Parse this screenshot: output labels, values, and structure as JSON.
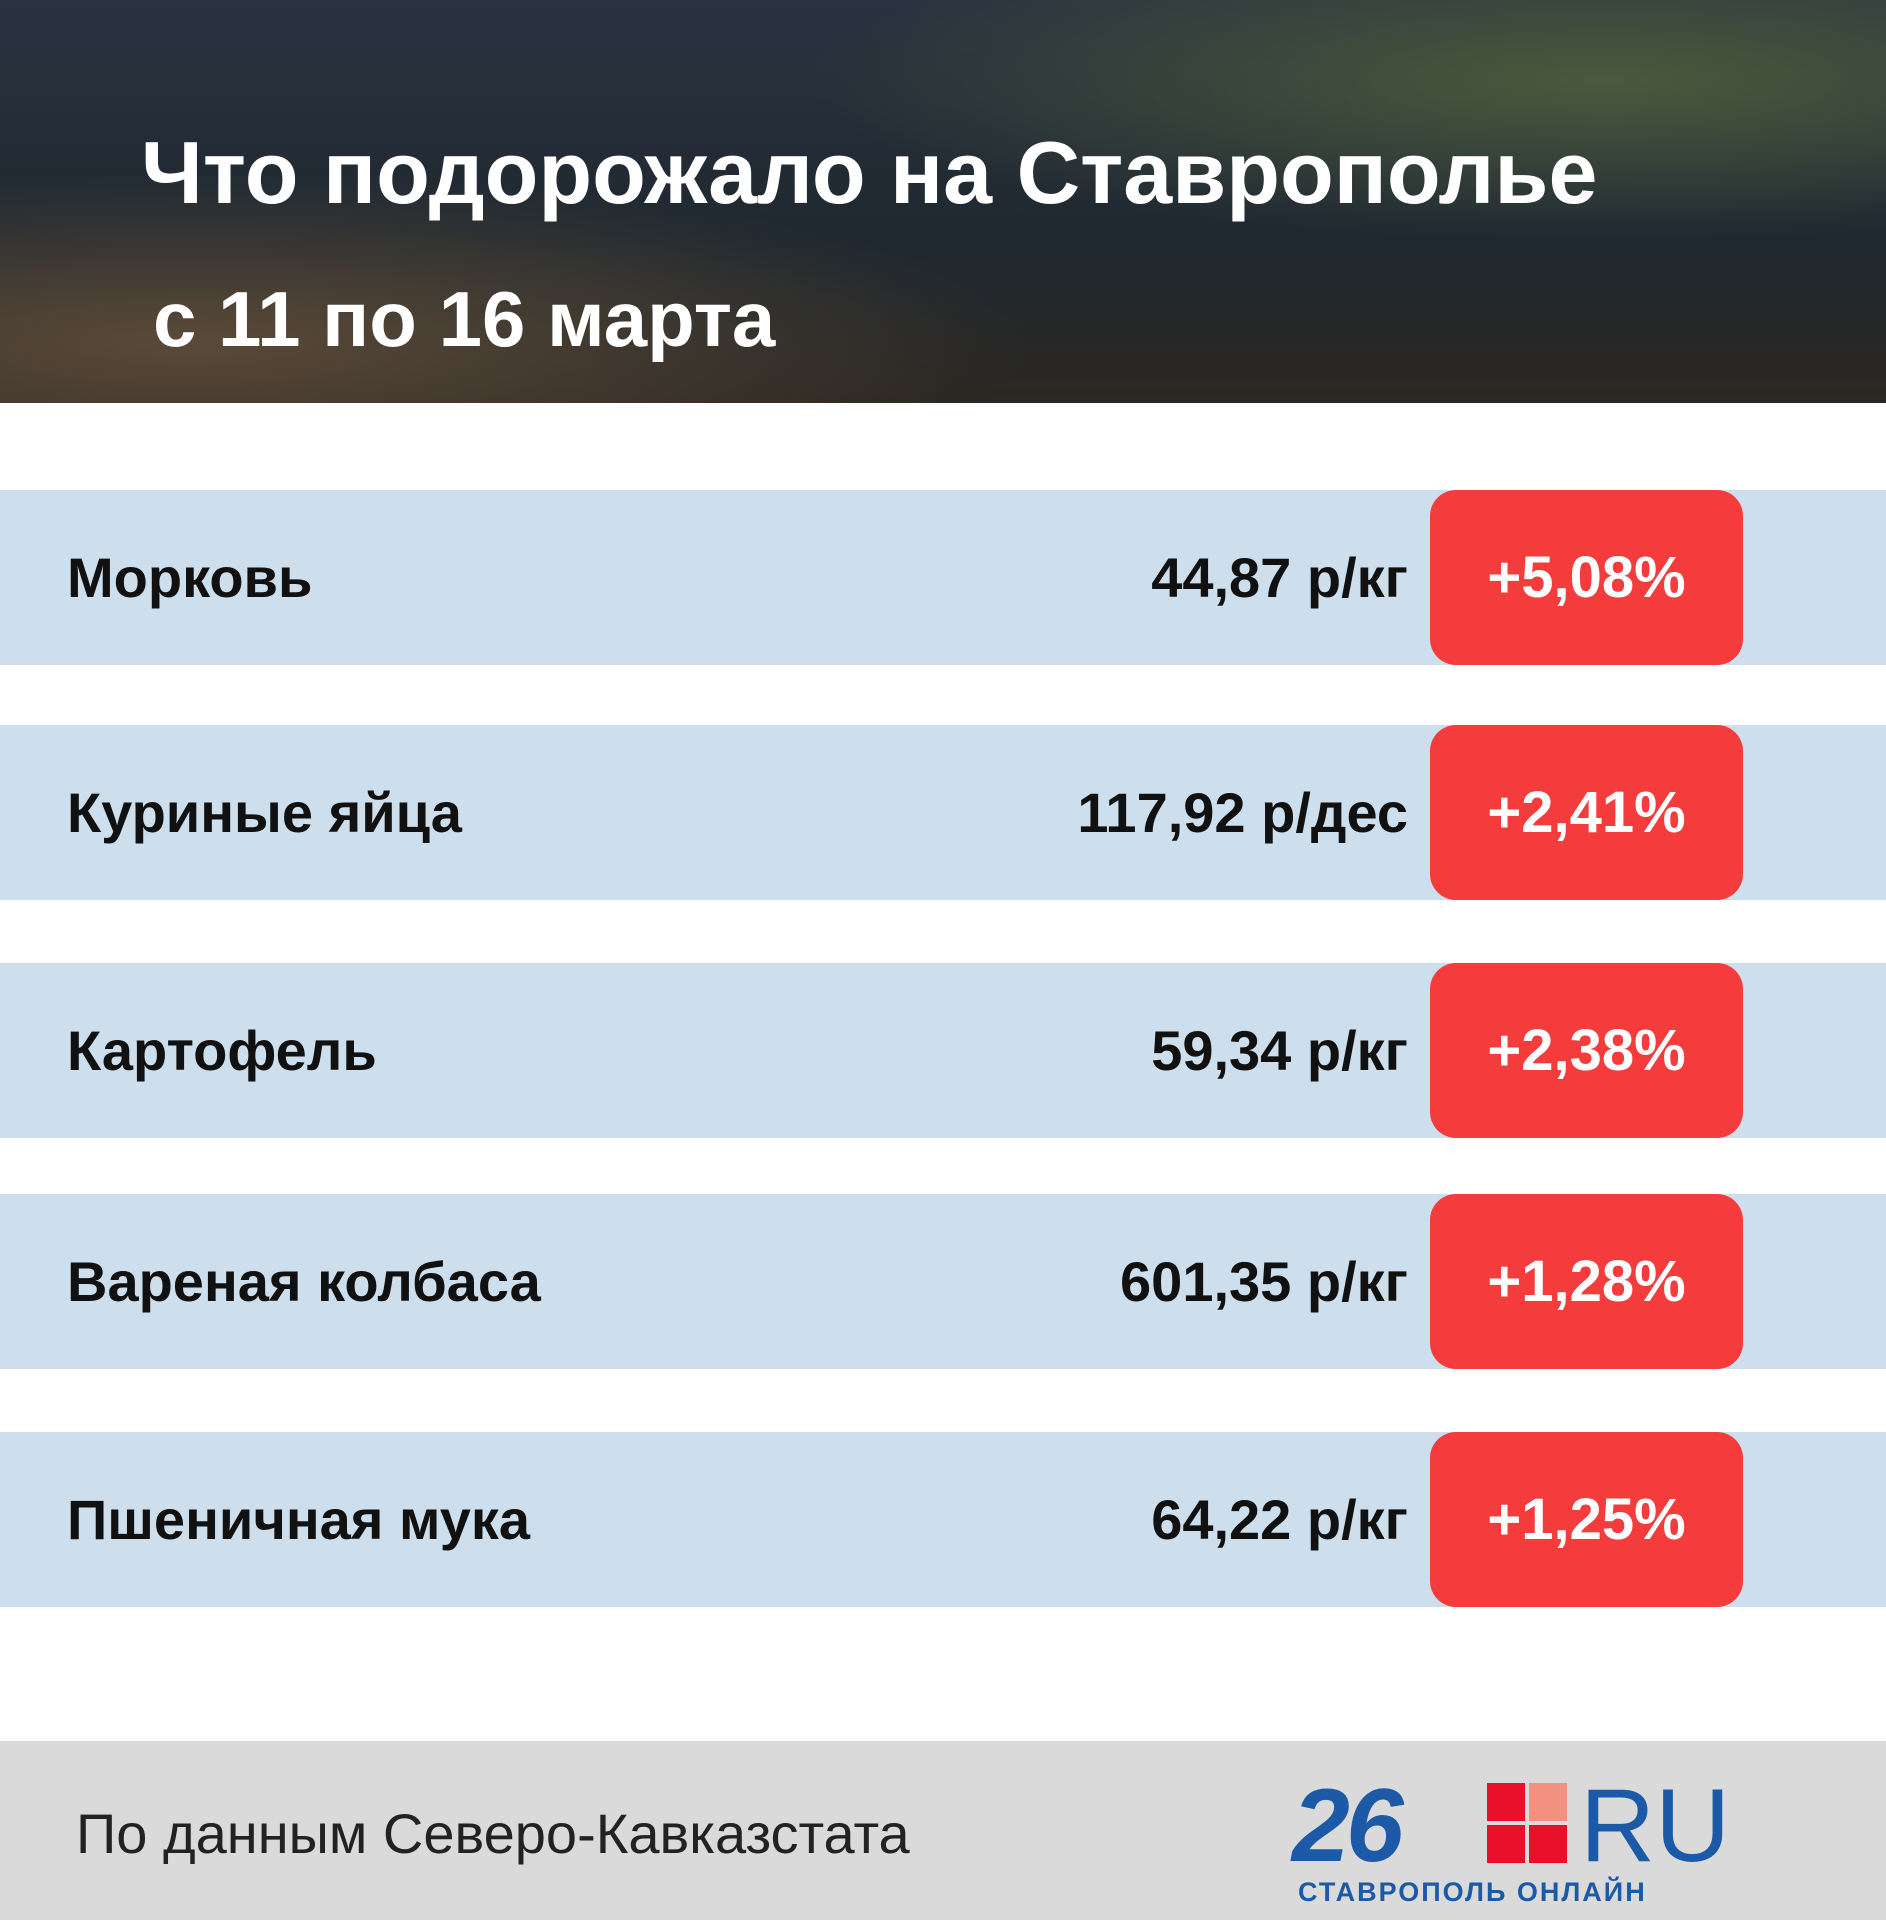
{
  "header": {
    "title": "Что подорожало на Ставрополье",
    "subtitle": "с 11 по 16 марта"
  },
  "table": {
    "rows": [
      {
        "name": "Морковь",
        "price": "44,87 р/кг",
        "change": "+5,08%"
      },
      {
        "name": "Куриные яйца",
        "price": "117,92 р/дес",
        "change": "+2,41%"
      },
      {
        "name": "Картофель",
        "price": "59,34 р/кг",
        "change": "+2,38%"
      },
      {
        "name": "Вареная колбаса",
        "price": "601,35 р/кг",
        "change": "+1,28%"
      },
      {
        "name": "Пшеничная мука",
        "price": "64,22 р/кг",
        "change": "+1,25%"
      }
    ]
  },
  "footer": {
    "source": "По данным Северо-Кавказстата",
    "logo_number": "26",
    "logo_domain": "RU",
    "logo_caption": "СТАВРОПОЛЬ ОНЛАЙН"
  }
}
